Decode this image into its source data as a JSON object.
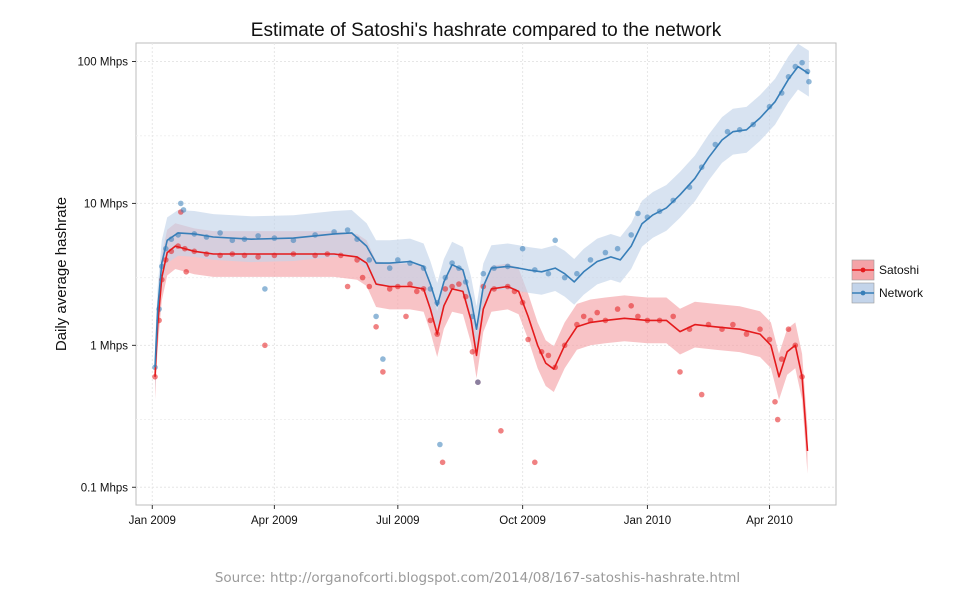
{
  "chart_data": {
    "type": "scatter",
    "title": "Estimate of Satoshi's hashrate compared to the network",
    "xlabel": "",
    "ylabel": "Daily average hashrate",
    "yscale": "log",
    "ylim": [
      0.075,
      135
    ],
    "xlim": [
      "2008-12-20",
      "2010-05-20"
    ],
    "x_ticks": [
      {
        "date": "2009-01-01",
        "label": "Jan 2009"
      },
      {
        "date": "2009-04-01",
        "label": "Apr 2009"
      },
      {
        "date": "2009-07-01",
        "label": "Jul 2009"
      },
      {
        "date": "2009-10-01",
        "label": "Oct 2009"
      },
      {
        "date": "2010-01-01",
        "label": "Jan 2010"
      },
      {
        "date": "2010-04-01",
        "label": "Apr 2010"
      }
    ],
    "y_ticks": [
      {
        "value": 0.1,
        "label": "0.1 Mhps"
      },
      {
        "value": 1,
        "label": "1 Mhps"
      },
      {
        "value": 10,
        "label": "10 Mhps"
      },
      {
        "value": 100,
        "label": "100 Mhps"
      }
    ],
    "grid": true,
    "legend_position": "right",
    "series": [
      {
        "name": "Satoshi",
        "color": "#e41a1c",
        "band_color": "#f4a3a7",
        "points": [
          [
            "2009-01-03",
            0.6
          ],
          [
            "2009-01-06",
            1.5
          ],
          [
            "2009-01-08",
            2.9
          ],
          [
            "2009-01-11",
            4.0
          ],
          [
            "2009-01-15",
            4.6
          ],
          [
            "2009-01-20",
            5.0
          ],
          [
            "2009-01-22",
            8.7
          ],
          [
            "2009-01-25",
            4.8
          ],
          [
            "2009-01-26",
            3.3
          ],
          [
            "2009-02-01",
            4.6
          ],
          [
            "2009-02-10",
            4.4
          ],
          [
            "2009-02-20",
            4.3
          ],
          [
            "2009-03-01",
            4.4
          ],
          [
            "2009-03-10",
            4.3
          ],
          [
            "2009-03-20",
            4.2
          ],
          [
            "2009-03-25",
            1.0
          ],
          [
            "2009-04-01",
            4.3
          ],
          [
            "2009-04-15",
            4.4
          ],
          [
            "2009-05-01",
            4.3
          ],
          [
            "2009-05-10",
            4.4
          ],
          [
            "2009-05-20",
            4.3
          ],
          [
            "2009-05-25",
            2.6
          ],
          [
            "2009-06-01",
            4.0
          ],
          [
            "2009-06-05",
            3.0
          ],
          [
            "2009-06-10",
            2.6
          ],
          [
            "2009-06-15",
            1.35
          ],
          [
            "2009-06-20",
            0.65
          ],
          [
            "2009-06-25",
            2.5
          ],
          [
            "2009-07-01",
            2.6
          ],
          [
            "2009-07-07",
            1.6
          ],
          [
            "2009-07-10",
            2.7
          ],
          [
            "2009-07-15",
            2.4
          ],
          [
            "2009-07-20",
            2.5
          ],
          [
            "2009-07-25",
            1.5
          ],
          [
            "2009-07-30",
            1.2
          ],
          [
            "2009-08-03",
            0.15
          ],
          [
            "2009-08-05",
            2.5
          ],
          [
            "2009-08-10",
            2.6
          ],
          [
            "2009-08-15",
            2.7
          ],
          [
            "2009-08-20",
            2.2
          ],
          [
            "2009-08-25",
            0.9
          ],
          [
            "2009-08-29",
            0.55
          ],
          [
            "2009-09-02",
            2.6
          ],
          [
            "2009-09-10",
            2.5
          ],
          [
            "2009-09-15",
            0.25
          ],
          [
            "2009-09-20",
            2.6
          ],
          [
            "2009-09-25",
            2.4
          ],
          [
            "2009-10-01",
            2.0
          ],
          [
            "2009-10-05",
            1.1
          ],
          [
            "2009-10-10",
            0.15
          ],
          [
            "2009-10-15",
            0.9
          ],
          [
            "2009-10-20",
            0.85
          ],
          [
            "2009-10-25",
            0.7
          ],
          [
            "2009-11-01",
            1.0
          ],
          [
            "2009-11-10",
            1.4
          ],
          [
            "2009-11-15",
            1.6
          ],
          [
            "2009-11-20",
            1.5
          ],
          [
            "2009-11-25",
            1.7
          ],
          [
            "2009-12-01",
            1.5
          ],
          [
            "2009-12-10",
            1.8
          ],
          [
            "2009-12-20",
            1.9
          ],
          [
            "2009-12-25",
            1.6
          ],
          [
            "2010-01-01",
            1.5
          ],
          [
            "2010-01-10",
            1.5
          ],
          [
            "2010-01-20",
            1.6
          ],
          [
            "2010-01-25",
            0.65
          ],
          [
            "2010-02-01",
            1.3
          ],
          [
            "2010-02-10",
            0.45
          ],
          [
            "2010-02-15",
            1.4
          ],
          [
            "2010-02-25",
            1.3
          ],
          [
            "2010-03-05",
            1.4
          ],
          [
            "2010-03-15",
            1.2
          ],
          [
            "2010-03-25",
            1.3
          ],
          [
            "2010-04-01",
            1.1
          ],
          [
            "2010-04-05",
            0.4
          ],
          [
            "2010-04-07",
            0.3
          ],
          [
            "2010-04-10",
            0.8
          ],
          [
            "2010-04-15",
            1.3
          ],
          [
            "2010-04-20",
            1.0
          ],
          [
            "2010-04-25",
            0.6
          ]
        ],
        "smooth": [
          [
            "2009-01-03",
            0.6
          ],
          [
            "2009-01-05",
            1.4
          ],
          [
            "2009-01-08",
            3.0
          ],
          [
            "2009-01-12",
            4.5
          ],
          [
            "2009-01-18",
            5.0
          ],
          [
            "2009-02-01",
            4.6
          ],
          [
            "2009-02-15",
            4.4
          ],
          [
            "2009-03-15",
            4.4
          ],
          [
            "2009-04-15",
            4.4
          ],
          [
            "2009-05-15",
            4.4
          ],
          [
            "2009-06-01",
            4.2
          ],
          [
            "2009-06-08",
            3.8
          ],
          [
            "2009-06-15",
            2.7
          ],
          [
            "2009-06-25",
            2.6
          ],
          [
            "2009-07-10",
            2.6
          ],
          [
            "2009-07-20",
            2.5
          ],
          [
            "2009-07-25",
            1.8
          ],
          [
            "2009-07-30",
            1.2
          ],
          [
            "2009-08-04",
            1.9
          ],
          [
            "2009-08-10",
            2.5
          ],
          [
            "2009-08-18",
            2.4
          ],
          [
            "2009-08-24",
            1.5
          ],
          [
            "2009-08-28",
            0.85
          ],
          [
            "2009-09-02",
            1.8
          ],
          [
            "2009-09-08",
            2.5
          ],
          [
            "2009-09-20",
            2.6
          ],
          [
            "2009-09-28",
            2.4
          ],
          [
            "2009-10-05",
            1.6
          ],
          [
            "2009-10-12",
            1.0
          ],
          [
            "2009-10-18",
            0.75
          ],
          [
            "2009-10-24",
            0.68
          ],
          [
            "2009-11-01",
            1.0
          ],
          [
            "2009-11-10",
            1.35
          ],
          [
            "2009-11-20",
            1.45
          ],
          [
            "2009-12-01",
            1.5
          ],
          [
            "2009-12-15",
            1.55
          ],
          [
            "2010-01-01",
            1.5
          ],
          [
            "2010-01-15",
            1.5
          ],
          [
            "2010-01-25",
            1.25
          ],
          [
            "2010-02-05",
            1.4
          ],
          [
            "2010-02-20",
            1.35
          ],
          [
            "2010-03-10",
            1.3
          ],
          [
            "2010-03-25",
            1.2
          ],
          [
            "2010-04-02",
            1.0
          ],
          [
            "2010-04-08",
            0.6
          ],
          [
            "2010-04-14",
            0.9
          ],
          [
            "2010-04-20",
            1.0
          ],
          [
            "2010-04-25",
            0.6
          ],
          [
            "2010-04-29",
            0.18
          ]
        ]
      },
      {
        "name": "Network",
        "color": "#377eb8",
        "band_color": "#c3d4ea",
        "points": [
          [
            "2009-01-03",
            0.7
          ],
          [
            "2009-01-06",
            1.8
          ],
          [
            "2009-01-08",
            3.6
          ],
          [
            "2009-01-11",
            4.8
          ],
          [
            "2009-01-15",
            5.6
          ],
          [
            "2009-01-20",
            6.0
          ],
          [
            "2009-01-22",
            10.0
          ],
          [
            "2009-01-24",
            9.0
          ],
          [
            "2009-02-01",
            6.1
          ],
          [
            "2009-02-10",
            5.8
          ],
          [
            "2009-02-20",
            6.2
          ],
          [
            "2009-03-01",
            5.5
          ],
          [
            "2009-03-10",
            5.6
          ],
          [
            "2009-03-20",
            5.9
          ],
          [
            "2009-03-25",
            2.5
          ],
          [
            "2009-04-01",
            5.7
          ],
          [
            "2009-04-15",
            5.5
          ],
          [
            "2009-05-01",
            6.0
          ],
          [
            "2009-05-15",
            6.3
          ],
          [
            "2009-05-25",
            6.5
          ],
          [
            "2009-06-01",
            5.6
          ],
          [
            "2009-06-10",
            4.0
          ],
          [
            "2009-06-15",
            1.6
          ],
          [
            "2009-06-20",
            0.8
          ],
          [
            "2009-06-25",
            3.5
          ],
          [
            "2009-07-01",
            4.0
          ],
          [
            "2009-07-10",
            3.8
          ],
          [
            "2009-07-20",
            3.5
          ],
          [
            "2009-07-25",
            2.5
          ],
          [
            "2009-07-30",
            2.0
          ],
          [
            "2009-08-01",
            0.2
          ],
          [
            "2009-08-05",
            3.0
          ],
          [
            "2009-08-10",
            3.8
          ],
          [
            "2009-08-15",
            3.5
          ],
          [
            "2009-08-20",
            2.8
          ],
          [
            "2009-08-25",
            1.6
          ],
          [
            "2009-08-29",
            0.55
          ],
          [
            "2009-09-02",
            3.2
          ],
          [
            "2009-09-10",
            3.5
          ],
          [
            "2009-09-20",
            3.6
          ],
          [
            "2009-10-01",
            4.8
          ],
          [
            "2009-10-10",
            3.4
          ],
          [
            "2009-10-20",
            3.2
          ],
          [
            "2009-10-25",
            5.5
          ],
          [
            "2009-11-01",
            3.0
          ],
          [
            "2009-11-10",
            3.2
          ],
          [
            "2009-11-20",
            4.0
          ],
          [
            "2009-12-01",
            4.5
          ],
          [
            "2009-12-10",
            4.8
          ],
          [
            "2009-12-20",
            6.0
          ],
          [
            "2009-12-25",
            8.5
          ],
          [
            "2010-01-01",
            8.0
          ],
          [
            "2010-01-10",
            8.8
          ],
          [
            "2010-01-20",
            10.5
          ],
          [
            "2010-02-01",
            13.0
          ],
          [
            "2010-02-10",
            18.0
          ],
          [
            "2010-02-20",
            26.0
          ],
          [
            "2010-03-01",
            32.0
          ],
          [
            "2010-03-10",
            33.0
          ],
          [
            "2010-03-20",
            36.0
          ],
          [
            "2010-04-01",
            48.0
          ],
          [
            "2010-04-10",
            60.0
          ],
          [
            "2010-04-15",
            78.0
          ],
          [
            "2010-04-20",
            92.0
          ],
          [
            "2010-04-25",
            98.0
          ],
          [
            "2010-04-29",
            85.0
          ],
          [
            "2010-04-30",
            72.0
          ]
        ],
        "smooth": [
          [
            "2009-01-03",
            0.7
          ],
          [
            "2009-01-05",
            1.8
          ],
          [
            "2009-01-08",
            3.8
          ],
          [
            "2009-01-12",
            5.5
          ],
          [
            "2009-01-20",
            6.2
          ],
          [
            "2009-02-01",
            6.1
          ],
          [
            "2009-02-15",
            5.8
          ],
          [
            "2009-03-15",
            5.6
          ],
          [
            "2009-04-15",
            5.7
          ],
          [
            "2009-05-15",
            6.1
          ],
          [
            "2009-05-28",
            6.2
          ],
          [
            "2009-06-08",
            5.0
          ],
          [
            "2009-06-15",
            3.8
          ],
          [
            "2009-06-25",
            3.8
          ],
          [
            "2009-07-10",
            3.9
          ],
          [
            "2009-07-20",
            3.6
          ],
          [
            "2009-07-25",
            2.7
          ],
          [
            "2009-07-30",
            1.9
          ],
          [
            "2009-08-04",
            2.8
          ],
          [
            "2009-08-10",
            3.7
          ],
          [
            "2009-08-18",
            3.4
          ],
          [
            "2009-08-24",
            2.1
          ],
          [
            "2009-08-28",
            1.3
          ],
          [
            "2009-09-02",
            2.6
          ],
          [
            "2009-09-08",
            3.5
          ],
          [
            "2009-09-20",
            3.6
          ],
          [
            "2009-09-28",
            3.5
          ],
          [
            "2009-10-05",
            3.4
          ],
          [
            "2009-10-15",
            3.3
          ],
          [
            "2009-10-25",
            3.5
          ],
          [
            "2009-11-01",
            3.2
          ],
          [
            "2009-11-08",
            2.8
          ],
          [
            "2009-11-15",
            3.3
          ],
          [
            "2009-11-25",
            3.9
          ],
          [
            "2009-12-05",
            4.2
          ],
          [
            "2009-12-12",
            4.0
          ],
          [
            "2009-12-20",
            5.0
          ],
          [
            "2009-12-28",
            7.2
          ],
          [
            "2010-01-05",
            8.3
          ],
          [
            "2010-01-15",
            9.3
          ],
          [
            "2010-01-25",
            11.5
          ],
          [
            "2010-02-05",
            15.0
          ],
          [
            "2010-02-15",
            21.0
          ],
          [
            "2010-02-25",
            28.0
          ],
          [
            "2010-03-05",
            32.0
          ],
          [
            "2010-03-15",
            33.0
          ],
          [
            "2010-03-25",
            40.0
          ],
          [
            "2010-04-05",
            52.0
          ],
          [
            "2010-04-15",
            75.0
          ],
          [
            "2010-04-22",
            92.0
          ],
          [
            "2010-04-30",
            82.0
          ]
        ]
      }
    ]
  },
  "source_caption": "Source: http://organofcorti.blogspot.com/2014/08/167-satoshis-hashrate.html"
}
